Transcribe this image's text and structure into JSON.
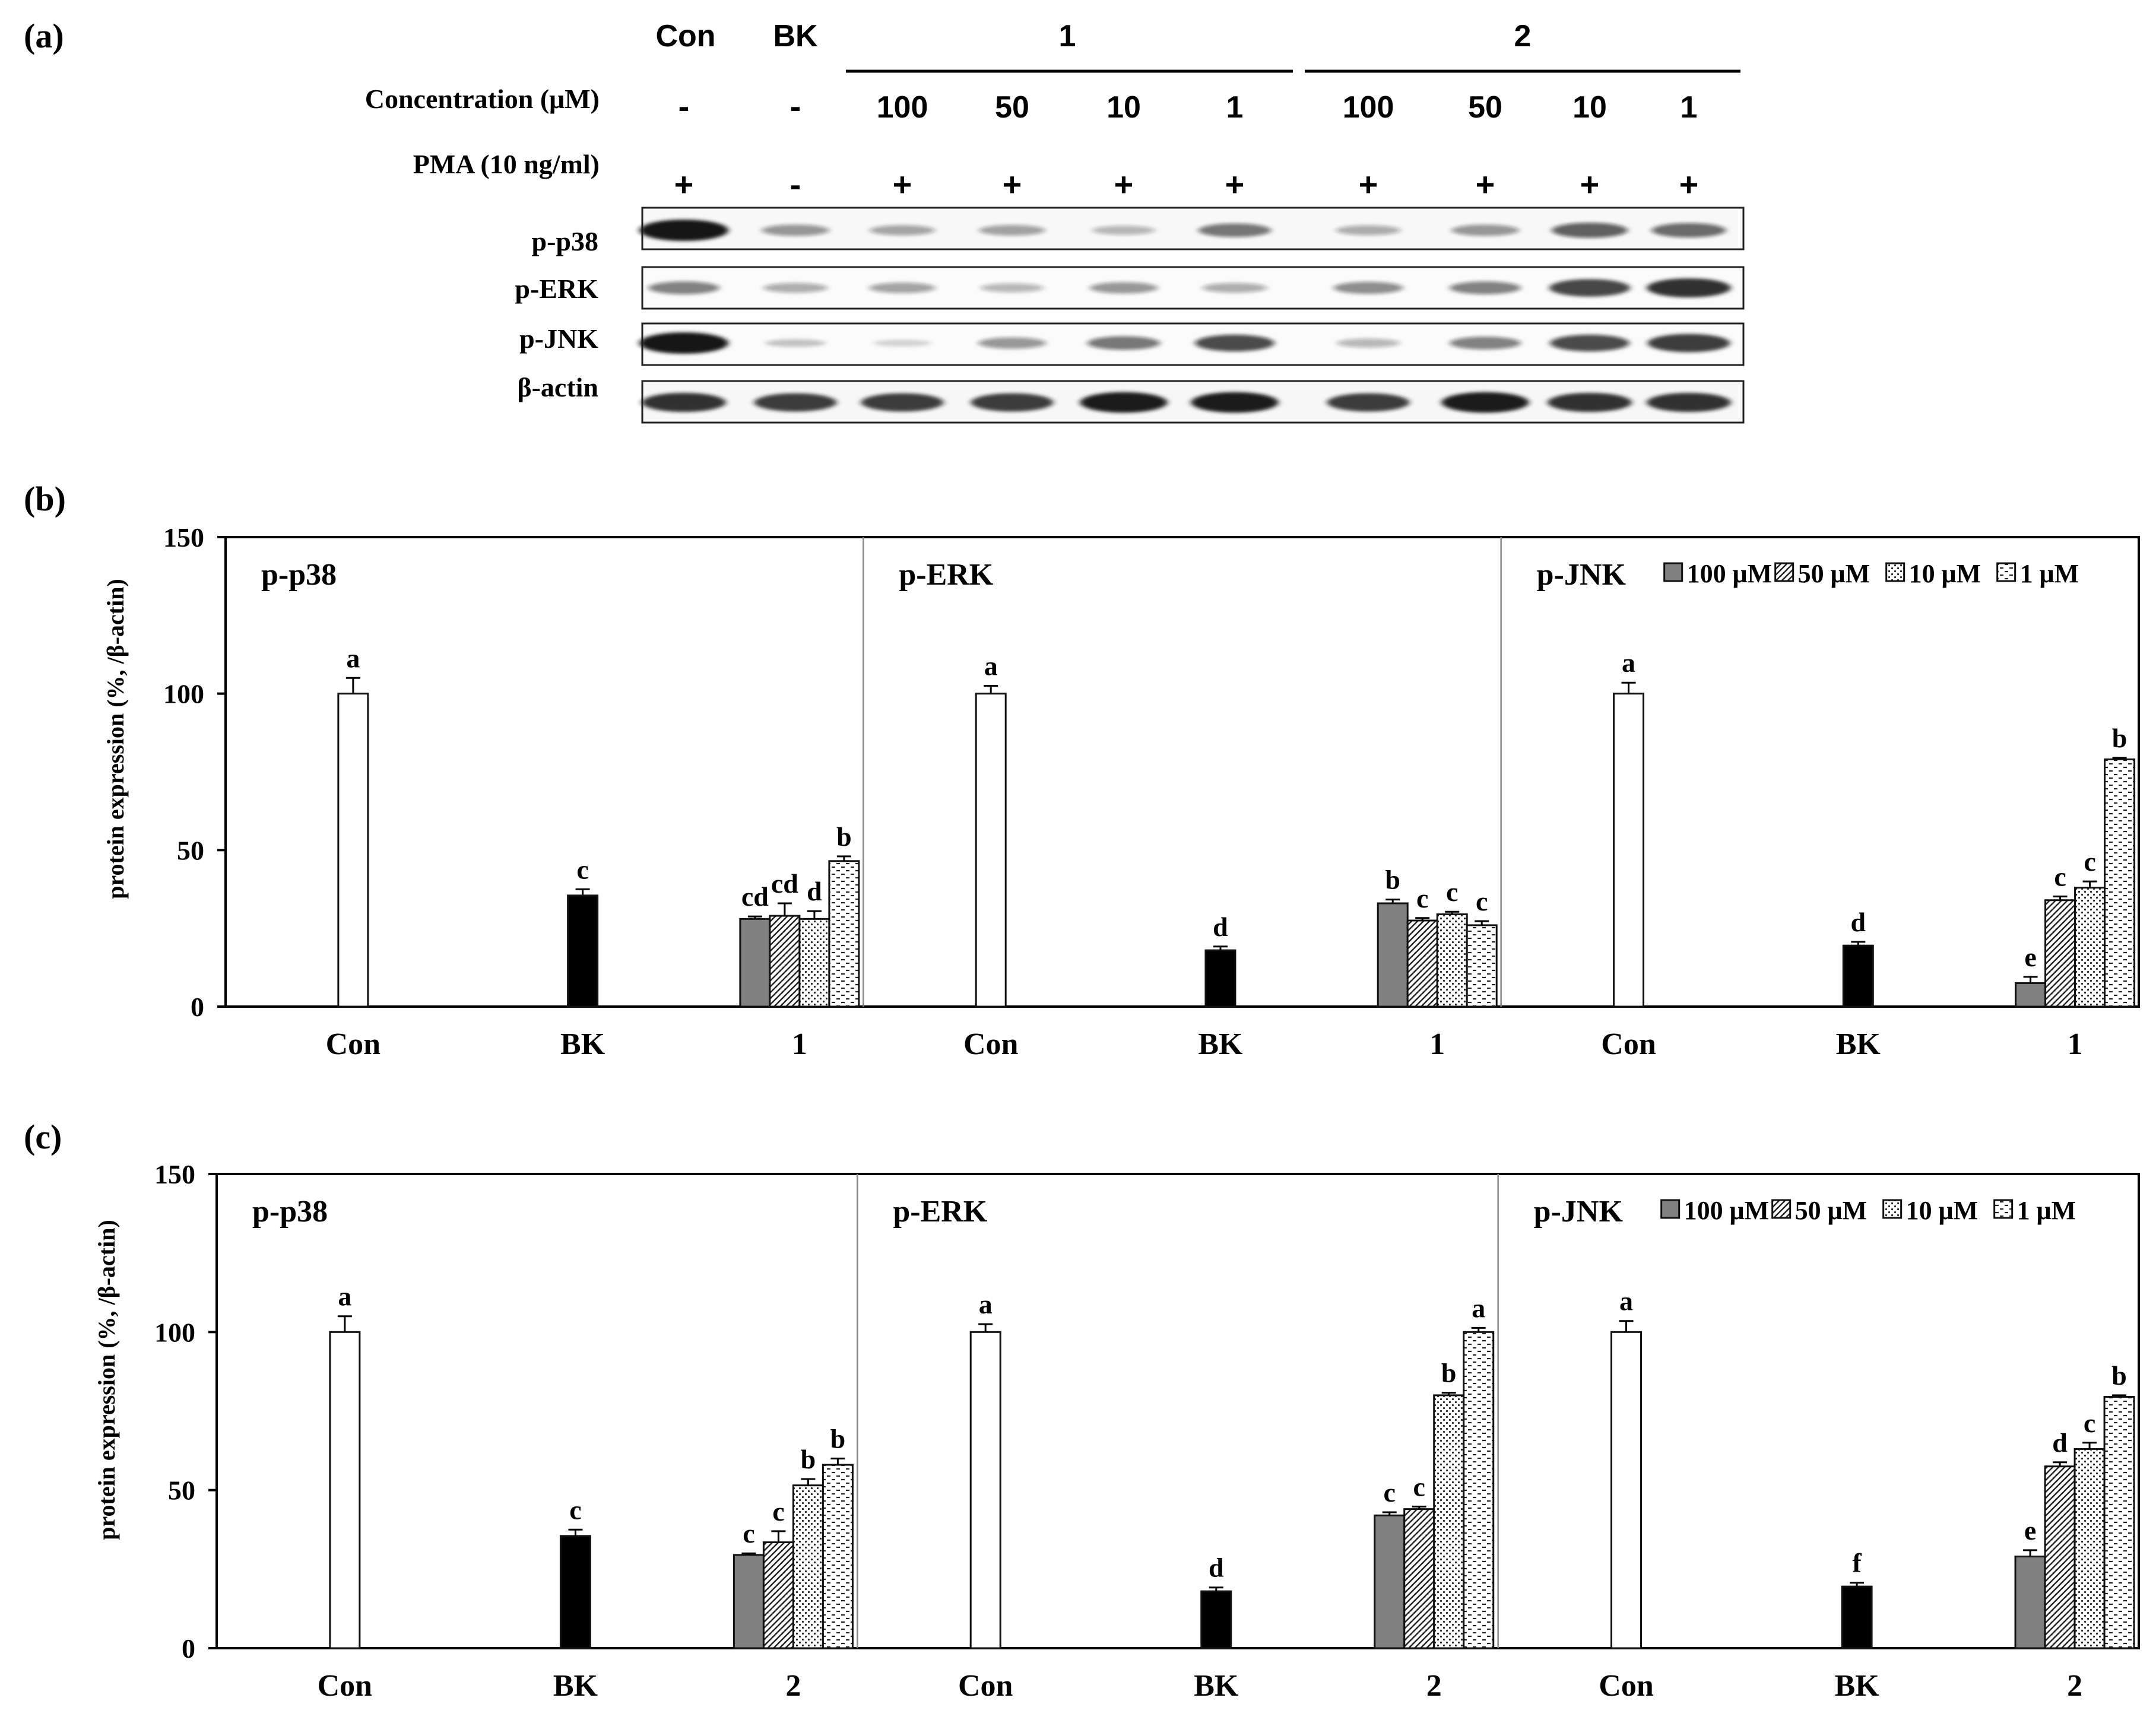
{
  "panel_labels": {
    "a": "(a)",
    "b": "(b)",
    "c": "(c)"
  },
  "blot": {
    "groups": [
      "Con",
      "BK",
      "1",
      "2"
    ],
    "row_labels": {
      "concentration": "Concentration (μM)",
      "pma": "PMA (10 ng/ml)"
    },
    "concentration": [
      "-",
      "-",
      "100",
      "50",
      "10",
      "1",
      "100",
      "50",
      "10",
      "1"
    ],
    "pma": [
      "+",
      "-",
      "+",
      "+",
      "+",
      "+",
      "+",
      "+",
      "+",
      "+"
    ],
    "proteins": [
      "p-p38",
      "p-ERK",
      "p-JNK",
      "β-actin"
    ],
    "band_intensity": {
      "p-p38": [
        1.0,
        0.35,
        0.28,
        0.3,
        0.2,
        0.5,
        0.25,
        0.35,
        0.6,
        0.55
      ],
      "p-ERK": [
        0.45,
        0.25,
        0.3,
        0.2,
        0.35,
        0.25,
        0.4,
        0.45,
        0.75,
        0.85
      ],
      "p-JNK": [
        1.0,
        0.12,
        0.05,
        0.35,
        0.5,
        0.7,
        0.2,
        0.45,
        0.7,
        0.8
      ],
      "β-actin": [
        0.85,
        0.8,
        0.8,
        0.8,
        0.95,
        0.95,
        0.8,
        0.95,
        0.85,
        0.85
      ]
    },
    "band_color": "#161616"
  },
  "legend": {
    "items": [
      "100 μM",
      "50 μM",
      "10 μM",
      "1 μM"
    ]
  },
  "chart_data": [
    {
      "type": "bar",
      "panel": "(b)",
      "ylabel": "protein expression (%, /β-actin)",
      "ylim": [
        0,
        150
      ],
      "yticks": [
        0,
        50,
        100,
        150
      ],
      "compound": "1",
      "categories": [
        "Con",
        "BK",
        "1"
      ],
      "legend": [
        "100 μM",
        "50 μM",
        "10 μM",
        "1 μM"
      ],
      "subpanels": [
        {
          "title": "p-p38",
          "con": {
            "value": 100,
            "error": 5,
            "label": "a"
          },
          "bk": {
            "value": 35.5,
            "error": 2,
            "label": "c"
          },
          "treatment": {
            "values": [
              28,
              29,
              28,
              46.5
            ],
            "errors": [
              0.8,
              4,
              2.5,
              1.5
            ],
            "labels": [
              "cd",
              "cd",
              "d",
              "b"
            ]
          }
        },
        {
          "title": "p-ERK",
          "con": {
            "value": 100,
            "error": 2.5,
            "label": "a"
          },
          "bk": {
            "value": 18,
            "error": 1.2,
            "label": "d"
          },
          "treatment": {
            "values": [
              33,
              27.5,
              29.5,
              26
            ],
            "errors": [
              1.2,
              0.8,
              0.8,
              1.3
            ],
            "labels": [
              "b",
              "c",
              "c",
              "c"
            ]
          }
        },
        {
          "title": "p-JNK",
          "con": {
            "value": 100,
            "error": 3.5,
            "label": "a"
          },
          "bk": {
            "value": 19.5,
            "error": 1.2,
            "label": "d"
          },
          "treatment": {
            "values": [
              7.5,
              34,
              38,
              79
            ],
            "errors": [
              2,
              1.2,
              2,
              0.5
            ],
            "labels": [
              "e",
              "c",
              "c",
              "b"
            ]
          }
        }
      ]
    },
    {
      "type": "bar",
      "panel": "(c)",
      "ylabel": "protein expression (%, /β-actin)",
      "ylim": [
        0,
        150
      ],
      "yticks": [
        0,
        50,
        100,
        150
      ],
      "compound": "2",
      "categories": [
        "Con",
        "BK",
        "2"
      ],
      "legend": [
        "100 μM",
        "50 μM",
        "10 μM",
        "1 μM"
      ],
      "subpanels": [
        {
          "title": "p-p38",
          "con": {
            "value": 100,
            "error": 5,
            "label": "a"
          },
          "bk": {
            "value": 35.5,
            "error": 2,
            "label": "c"
          },
          "treatment": {
            "values": [
              29.5,
              33.5,
              51.5,
              58
            ],
            "errors": [
              0.5,
              3.5,
              2,
              2
            ],
            "labels": [
              "c",
              "c",
              "b",
              "b"
            ]
          }
        },
        {
          "title": "p-ERK",
          "con": {
            "value": 100,
            "error": 2.5,
            "label": "a"
          },
          "bk": {
            "value": 18,
            "error": 1.2,
            "label": "d"
          },
          "treatment": {
            "values": [
              42,
              44,
              80,
              100
            ],
            "errors": [
              1,
              0.8,
              0.8,
              1.3
            ],
            "labels": [
              "c",
              "c",
              "b",
              "a"
            ]
          }
        },
        {
          "title": "p-JNK",
          "con": {
            "value": 100,
            "error": 3.5,
            "label": "a"
          },
          "bk": {
            "value": 19.5,
            "error": 1.2,
            "label": "f"
          },
          "treatment": {
            "values": [
              29,
              57.5,
              63,
              79.5
            ],
            "errors": [
              2,
              1.3,
              2,
              0.5
            ],
            "labels": [
              "e",
              "d",
              "c",
              "b"
            ]
          }
        }
      ]
    }
  ]
}
